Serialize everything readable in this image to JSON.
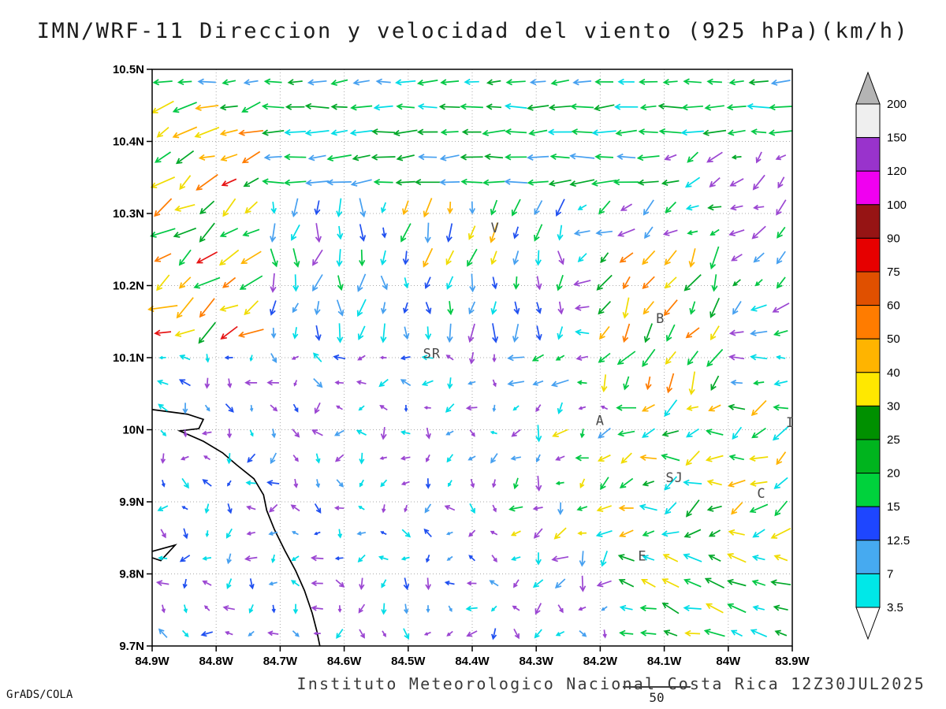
{
  "chart_data": {
    "type": "vector_field_map",
    "title": "IMN/WRF-11 Direccion y velocidad del viento (925 hPa)(km/h)",
    "caption": "Instituto Meteorologico Nacional Costa Rica 12Z30JUL2025",
    "credit": "GrADS/COLA",
    "units": "km/h",
    "x_axis": {
      "tick_labels": [
        "84.9W",
        "84.8W",
        "84.7W",
        "84.6W",
        "84.5W",
        "84.4W",
        "84.3W",
        "84.2W",
        "84.1W",
        "84W",
        "83.9W"
      ],
      "range_deg_west": [
        84.9,
        83.9
      ]
    },
    "y_axis": {
      "tick_labels": [
        "10.5N",
        "10.4N",
        "10.3N",
        "10.2N",
        "10.1N",
        "10N",
        "9.9N",
        "9.8N",
        "9.7N"
      ],
      "range_deg_north": [
        9.7,
        10.5
      ]
    },
    "legend": {
      "levels_top_to_bottom": [
        "200",
        "150",
        "120",
        "100",
        "90",
        "75",
        "60",
        "50",
        "40",
        "30",
        "25",
        "20",
        "15",
        "12.5",
        "7",
        "3.5"
      ],
      "box_colors_top_to_bottom": [
        "#efefef",
        "#9933cc",
        "#f000f0",
        "#961414",
        "#e60000",
        "#e05000",
        "#ff7c00",
        "#ffb400",
        "#ffe800",
        "#009000",
        "#00b41e",
        "#00d23c",
        "#1e46ff",
        "#46aaf0",
        "#00e8e8"
      ],
      "over_color": "#b4b4b4",
      "under_color": "#ffffff"
    },
    "reference_vector": {
      "label": "50"
    },
    "stations": [
      {
        "label": "V",
        "fx": 0.536,
        "fy": 0.283
      },
      {
        "label": "B",
        "fx": 0.794,
        "fy": 0.44
      },
      {
        "label": "SR",
        "fx": 0.437,
        "fy": 0.501
      },
      {
        "label": "A",
        "fx": 0.7,
        "fy": 0.617
      },
      {
        "label": "SJ",
        "fx": 0.816,
        "fy": 0.716
      },
      {
        "label": "C",
        "fx": 0.952,
        "fy": 0.743
      },
      {
        "label": "E",
        "fx": 0.766,
        "fy": 0.852
      },
      {
        "label": "I",
        "fx": 0.997,
        "fy": 0.62
      }
    ],
    "coastline": {
      "main": [
        [
          0,
          0.59
        ],
        [
          0.055,
          0.598
        ],
        [
          0.08,
          0.607
        ],
        [
          0.073,
          0.623
        ],
        [
          0.043,
          0.627
        ],
        [
          0.08,
          0.645
        ],
        [
          0.11,
          0.665
        ],
        [
          0.132,
          0.686
        ],
        [
          0.159,
          0.71
        ],
        [
          0.174,
          0.738
        ],
        [
          0.179,
          0.765
        ],
        [
          0.191,
          0.798
        ],
        [
          0.208,
          0.836
        ],
        [
          0.224,
          0.869
        ],
        [
          0.238,
          0.904
        ],
        [
          0.25,
          0.943
        ],
        [
          0.257,
          0.973
        ],
        [
          0.262,
          1.0
        ]
      ],
      "islet": [
        [
          0,
          0.836
        ],
        [
          0.036,
          0.825
        ],
        [
          0.0135,
          0.852
        ],
        [
          0,
          0.847
        ]
      ]
    },
    "wind_field": {
      "ncols": 29,
      "nrows": 23,
      "arrow_colors": {
        "purple": "#9b46d2",
        "cyan": "#00dce6",
        "sky": "#46a0f0",
        "blue": "#2050f0",
        "green1": "#00c844",
        "green2": "#00a828",
        "yellow": "#f0dc00",
        "amber": "#ffb400",
        "orange": "#ff7c00",
        "redorange": "#e65000",
        "red": "#e61414"
      },
      "regions": [
        {
          "box": [
            0,
            1,
            0,
            0.045
          ],
          "dir": 185,
          "jit": 10,
          "len": 20,
          "ljit": 5,
          "colors": [
            "green1",
            "cyan",
            "green2",
            "sky",
            "green1"
          ]
        },
        {
          "box": [
            0,
            0.17,
            0.045,
            0.17
          ],
          "dir": 205,
          "jit": 22,
          "len": 26,
          "ljit": 8,
          "colors": [
            "green1",
            "yellow",
            "amber",
            "green2",
            "orange"
          ]
        },
        {
          "box": [
            0,
            0.17,
            0.17,
            0.46
          ],
          "dir": 212,
          "jit": 26,
          "len": 28,
          "ljit": 9,
          "colors": [
            "yellow",
            "amber",
            "green1",
            "orange",
            "green2",
            "yellow"
          ],
          "rare": "red",
          "rare_p": 0.06
        },
        {
          "box": [
            0,
            1,
            0.045,
            0.14
          ],
          "dir": 183,
          "jit": 9,
          "len": 24,
          "ljit": 6,
          "colors": [
            "green1",
            "green2",
            "cyan",
            "green1"
          ]
        },
        {
          "box": [
            0.18,
            0.8,
            0.14,
            0.2
          ],
          "dir": 184,
          "jit": 10,
          "len": 26,
          "ljit": 5,
          "colors": [
            "green1",
            "green2",
            "green1",
            "sky"
          ]
        },
        {
          "box": [
            0.38,
            0.58,
            0.2,
            0.33
          ],
          "dir": 255,
          "jit": 18,
          "len": 20,
          "ljit": 6,
          "colors": [
            "yellow",
            "green1",
            "sky",
            "amber",
            "blue"
          ]
        },
        {
          "box": [
            0.7,
            0.88,
            0.32,
            0.56
          ],
          "dir": 240,
          "jit": 25,
          "len": 22,
          "ljit": 7,
          "colors": [
            "amber",
            "yellow",
            "green1",
            "orange",
            "green2"
          ]
        },
        {
          "box": [
            0.17,
            0.64,
            0.14,
            0.5
          ],
          "dir": 265,
          "jit": 28,
          "len": 18,
          "ljit": 6,
          "colors": [
            "sky",
            "cyan",
            "blue",
            "green1",
            "purple",
            "cyan"
          ]
        },
        {
          "box": [
            0.6,
            1,
            0.1,
            0.42
          ],
          "dir": 215,
          "jit": 30,
          "len": 17,
          "ljit": 6,
          "colors": [
            "green1",
            "cyan",
            "purple",
            "sky",
            "green2",
            "purple"
          ]
        },
        {
          "box": [
            0.55,
            1,
            0.42,
            0.58
          ],
          "dir": 190,
          "jit": 20,
          "len": 16,
          "ljit": 6,
          "colors": [
            "green1",
            "cyan",
            "purple",
            "sky"
          ]
        },
        {
          "box": [
            0.72,
            1,
            0.58,
            0.82
          ],
          "dir": 200,
          "jit": 38,
          "len": 20,
          "ljit": 7,
          "colors": [
            "yellow",
            "green1",
            "amber",
            "cyan",
            "green2"
          ]
        },
        {
          "box": [
            0.72,
            1,
            0.82,
            1
          ],
          "dir": 162,
          "jit": 16,
          "len": 20,
          "ljit": 6,
          "colors": [
            "green1",
            "yellow",
            "cyan",
            "green2"
          ]
        },
        {
          "box": [
            0.56,
            0.72,
            0.6,
            0.9
          ],
          "dir": 230,
          "jit": 50,
          "len": 15,
          "ljit": 6,
          "colors": [
            "yellow",
            "purple",
            "cyan",
            "sky",
            "green1"
          ]
        }
      ],
      "default_region": {
        "dir_min": 130,
        "dir_max": 320,
        "len": 11,
        "ljit": 4,
        "colors": [
          "purple",
          "sky",
          "purple",
          "cyan",
          "purple",
          "blue",
          "cyan"
        ]
      }
    }
  }
}
